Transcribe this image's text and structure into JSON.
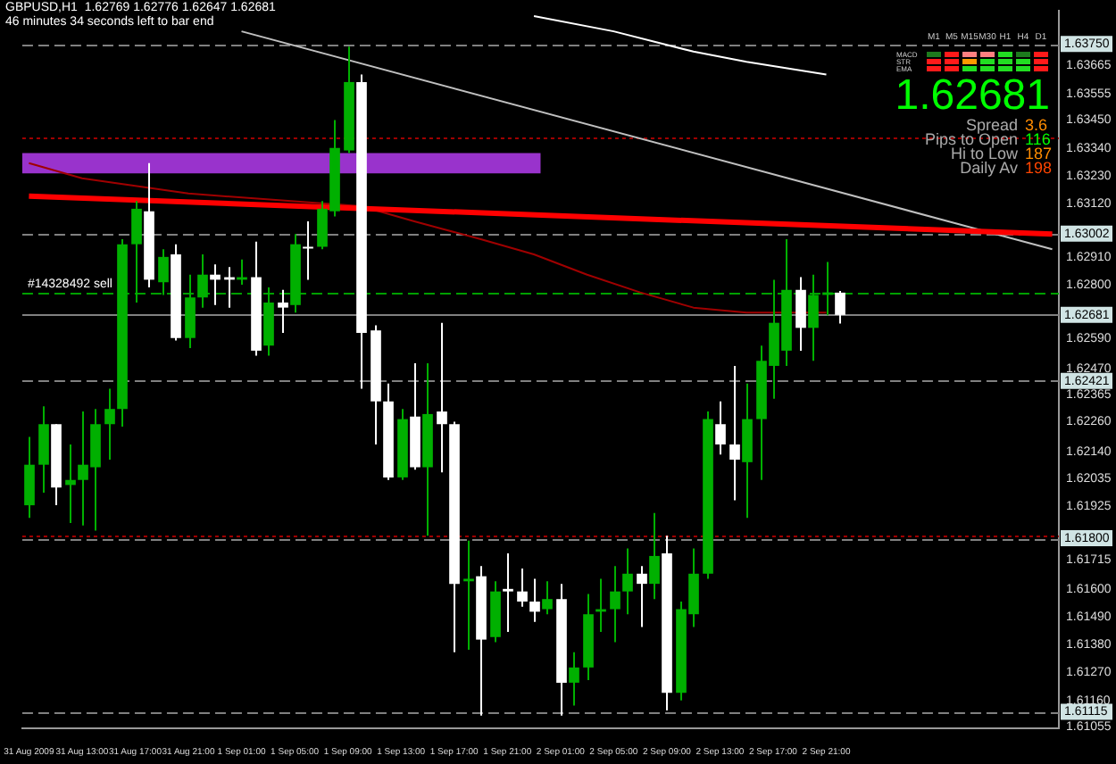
{
  "chart_data": {
    "type": "candlestick",
    "title": "GBPUSD,H1  1.62769 1.62776 1.62647 1.62681",
    "subtitle": "46 minutes 34 seconds left to bar end",
    "categories": [
      "31 Aug 2009",
      null,
      null,
      null,
      "31 Aug 13:00",
      null,
      null,
      null,
      "31 Aug 17:00",
      null,
      null,
      null,
      "31 Aug 21:00",
      null,
      null,
      null,
      "1 Sep 01:00",
      null,
      null,
      null,
      "1 Sep 05:00",
      null,
      null,
      null,
      "1 Sep 09:00",
      null,
      null,
      null,
      "1 Sep 13:00",
      null,
      null,
      null,
      "1 Sep 17:00",
      null,
      null,
      null,
      "1 Sep 21:00",
      null,
      null,
      null,
      "2 Sep 01:00",
      null,
      null,
      null,
      "2 Sep 05:00",
      null,
      null,
      null,
      "2 Sep 09:00",
      null,
      null,
      null,
      "2 Sep 13:00",
      null,
      null,
      null,
      "2 Sep 17:00",
      null,
      null,
      null,
      "2 Sep 21:00",
      null,
      null,
      null,
      null,
      null,
      null,
      null,
      null,
      null,
      null,
      null,
      null,
      null,
      null,
      null,
      null,
      null
    ],
    "ohlc": [
      [
        1.6193,
        1.622,
        1.6188,
        1.6209
      ],
      [
        1.6209,
        1.6232,
        1.6198,
        1.6225
      ],
      [
        1.6225,
        1.6225,
        1.6193,
        1.62
      ],
      [
        1.6201,
        1.6217,
        1.6186,
        1.6203
      ],
      [
        1.6203,
        1.623,
        1.6185,
        1.6209
      ],
      [
        1.6208,
        1.6231,
        1.6183,
        1.6225
      ],
      [
        1.6225,
        1.6239,
        1.6211,
        1.6231
      ],
      [
        1.6231,
        1.6298,
        1.6224,
        1.6296
      ],
      [
        1.6296,
        1.6313,
        1.6273,
        1.631
      ],
      [
        1.6309,
        1.6328,
        1.6279,
        1.6282
      ],
      [
        1.6281,
        1.6294,
        1.6276,
        1.6291
      ],
      [
        1.6292,
        1.6296,
        1.6258,
        1.6259
      ],
      [
        1.6259,
        1.6284,
        1.6255,
        1.6275
      ],
      [
        1.6275,
        1.6292,
        1.6271,
        1.6284
      ],
      [
        1.6284,
        1.6288,
        1.6272,
        1.6282
      ],
      [
        1.6283,
        1.6287,
        1.6271,
        1.6282
      ],
      [
        1.6282,
        1.629,
        1.628,
        1.6283
      ],
      [
        1.6283,
        1.6297,
        1.6252,
        1.6254
      ],
      [
        1.6256,
        1.6279,
        1.6252,
        1.6273
      ],
      [
        1.6273,
        1.6278,
        1.6261,
        1.6271
      ],
      [
        1.6272,
        1.63,
        1.6269,
        1.6296
      ],
      [
        1.6295,
        1.6305,
        1.6282,
        1.6295
      ],
      [
        1.6295,
        1.6313,
        1.6294,
        1.631
      ],
      [
        1.6309,
        1.6345,
        1.6307,
        1.6334
      ],
      [
        1.6333,
        1.6374,
        1.6332,
        1.636
      ],
      [
        1.636,
        1.6363,
        1.6239,
        1.6261
      ],
      [
        1.6262,
        1.6264,
        1.6217,
        1.6234
      ],
      [
        1.6234,
        1.6241,
        1.6203,
        1.6204
      ],
      [
        1.6204,
        1.6231,
        1.6203,
        1.6227
      ],
      [
        1.6228,
        1.6249,
        1.6207,
        1.6208
      ],
      [
        1.6208,
        1.6249,
        1.6181,
        1.6229
      ],
      [
        1.623,
        1.6265,
        1.6206,
        1.6225
      ],
      [
        1.6225,
        1.6226,
        1.6135,
        1.6162
      ],
      [
        1.6163,
        1.6179,
        1.6136,
        1.6164
      ],
      [
        1.6165,
        1.6169,
        1.611,
        1.614
      ],
      [
        1.6141,
        1.6163,
        1.6139,
        1.6159
      ],
      [
        1.616,
        1.6174,
        1.6143,
        1.6159
      ],
      [
        1.6159,
        1.6168,
        1.6153,
        1.6155
      ],
      [
        1.6155,
        1.6164,
        1.6147,
        1.6151
      ],
      [
        1.6152,
        1.6163,
        1.615,
        1.6156
      ],
      [
        1.6156,
        1.6162,
        1.611,
        1.6123
      ],
      [
        1.6123,
        1.6135,
        1.6114,
        1.6129
      ],
      [
        1.6129,
        1.6158,
        1.6124,
        1.615
      ],
      [
        1.6151,
        1.6164,
        1.6143,
        1.6152
      ],
      [
        1.6152,
        1.6169,
        1.6139,
        1.6159
      ],
      [
        1.6159,
        1.6176,
        1.615,
        1.6166
      ],
      [
        1.6166,
        1.6169,
        1.6145,
        1.6162
      ],
      [
        1.6162,
        1.619,
        1.6156,
        1.6173
      ],
      [
        1.6174,
        1.6181,
        1.6112,
        1.6119
      ],
      [
        1.6119,
        1.6155,
        1.6116,
        1.6152
      ],
      [
        1.615,
        1.6176,
        1.6145,
        1.6166
      ],
      [
        1.6166,
        1.623,
        1.6164,
        1.6227
      ],
      [
        1.6225,
        1.6234,
        1.6213,
        1.6217
      ],
      [
        1.6217,
        1.6248,
        1.6195,
        1.6211
      ],
      [
        1.621,
        1.6241,
        1.6188,
        1.6227
      ],
      [
        1.6227,
        1.6256,
        1.6203,
        1.625
      ],
      [
        1.6248,
        1.6282,
        1.6235,
        1.6265
      ],
      [
        1.6254,
        1.6298,
        1.6248,
        1.6278
      ],
      [
        1.6278,
        1.6283,
        1.6254,
        1.6263
      ],
      [
        1.6263,
        1.6284,
        1.625,
        1.6276
      ],
      [
        1.6276,
        1.6289,
        1.6268,
        1.6277
      ],
      [
        1.62769,
        1.62776,
        1.62647,
        1.62681
      ],
      null,
      null,
      null,
      null,
      null,
      null,
      null,
      null,
      null,
      null,
      null,
      null,
      null,
      null,
      null,
      null
    ],
    "colors": [
      "#00b000",
      "#00b000",
      "#ffffff",
      "#00b000",
      "#00b000",
      "#00b000",
      "#00b000",
      "#00b000",
      "#00b000",
      "#ffffff",
      "#00b000",
      "#ffffff",
      "#00b000",
      "#00b000",
      "#ffffff",
      "#ffffff",
      "#00b000",
      "#ffffff",
      "#00b000",
      "#ffffff",
      "#00b000",
      "#ffffff",
      "#00b000",
      "#00b000",
      "#00b000",
      "#ffffff",
      "#ffffff",
      "#ffffff",
      "#00b000",
      "#ffffff",
      "#00b000",
      "#ffffff",
      "#ffffff",
      "#00b000",
      "#ffffff",
      "#00b000",
      "#ffffff",
      "#ffffff",
      "#ffffff",
      "#00b000",
      "#ffffff",
      "#00b000",
      "#00b000",
      "#00b000",
      "#00b000",
      "#00b000",
      "#ffffff",
      "#00b000",
      "#ffffff",
      "#00b000",
      "#00b000",
      "#00b000",
      "#ffffff",
      "#ffffff",
      "#00b000",
      "#00b000",
      "#00b000",
      "#00b000",
      "#ffffff",
      "#00b000",
      "#00b000",
      "#ffffff",
      null,
      null,
      null,
      null,
      null,
      null,
      null,
      null,
      null,
      null,
      null,
      null,
      null,
      null,
      null,
      null
    ],
    "series": [
      {
        "type": "line",
        "color": "#ff0000",
        "values": [
          1.6315,
          null,
          null,
          null,
          null,
          null,
          null,
          null,
          null,
          null,
          null,
          null,
          null,
          null,
          null,
          null,
          null,
          null,
          null,
          null,
          null,
          null,
          null,
          null,
          null,
          null,
          null,
          null,
          null,
          null,
          null,
          null,
          null,
          null,
          null,
          null,
          null,
          null,
          null,
          null,
          null,
          null,
          null,
          null,
          null,
          null,
          null,
          null,
          null,
          null,
          null,
          null,
          null,
          null,
          null,
          null,
          null,
          null,
          null,
          null,
          null,
          null,
          null,
          null,
          null,
          null,
          null,
          null,
          null,
          null,
          null,
          null,
          null,
          null,
          null,
          null,
          null,
          1.63
        ]
      },
      {
        "type": "line",
        "color": "#c0c0c0",
        "values": [
          null,
          null,
          null,
          null,
          null,
          null,
          null,
          null,
          null,
          null,
          null,
          null,
          null,
          null,
          null,
          null,
          1.638,
          null,
          null,
          null,
          null,
          null,
          null,
          null,
          null,
          null,
          null,
          null,
          null,
          null,
          null,
          null,
          null,
          null,
          null,
          null,
          null,
          null,
          null,
          null,
          null,
          null,
          null,
          null,
          null,
          null,
          null,
          null,
          null,
          null,
          null,
          null,
          null,
          null,
          null,
          null,
          null,
          null,
          null,
          null,
          null,
          null,
          null,
          null,
          null,
          null,
          null,
          null,
          null,
          null,
          null,
          null,
          null,
          null,
          null,
          null,
          null,
          1.6294
        ]
      },
      {
        "type": "line",
        "color": "#ffffff",
        "values": [
          null,
          null,
          null,
          null,
          null,
          null,
          null,
          null,
          null,
          null,
          null,
          null,
          null,
          null,
          null,
          null,
          null,
          null,
          null,
          null,
          null,
          null,
          null,
          null,
          null,
          null,
          null,
          null,
          null,
          null,
          null,
          null,
          null,
          null,
          null,
          null,
          null,
          null,
          1.6386,
          null,
          null,
          null,
          null,
          null,
          1.638,
          null,
          null,
          null,
          null,
          null,
          1.6372,
          null,
          null,
          null,
          1.6368,
          null,
          null,
          null,
          null,
          null,
          1.6363,
          null,
          null,
          null,
          null,
          null,
          null,
          null,
          null,
          null,
          null,
          null,
          null,
          null,
          null,
          null,
          null,
          null
        ]
      },
      {
        "type": "line",
        "color": "#a00000",
        "values": [
          1.6328,
          null,
          null,
          null,
          1.6322,
          null,
          null,
          null,
          null,
          null,
          null,
          null,
          1.6316,
          null,
          null,
          null,
          null,
          null,
          null,
          null,
          null,
          null,
          null,
          null,
          null,
          1.6311,
          null,
          null,
          null,
          1.6305,
          null,
          null,
          null,
          null,
          1.6298,
          null,
          null,
          null,
          1.6292,
          null,
          null,
          null,
          1.6284,
          null,
          null,
          null,
          1.6277,
          null,
          null,
          null,
          1.6271,
          null,
          null,
          null,
          1.6269,
          null,
          null,
          null,
          null,
          null,
          1.6269,
          null,
          null,
          null,
          null,
          null,
          null,
          null,
          null,
          null,
          null,
          null,
          null,
          null,
          null,
          null,
          null,
          null
        ]
      }
    ],
    "ylim": [
      1.6105,
      1.6388
    ],
    "yticks": [
      {
        "value": 1.63665,
        "label": "1.63665"
      },
      {
        "value": 1.63555,
        "label": "1.63555"
      },
      {
        "value": 1.6345,
        "label": "1.63450"
      },
      {
        "value": 1.6334,
        "label": "1.63340"
      },
      {
        "value": 1.6323,
        "label": "1.63230"
      },
      {
        "value": 1.6312,
        "label": "1.63120"
      },
      {
        "value": 1.6291,
        "label": "1.62910"
      },
      {
        "value": 1.628,
        "label": "1.62800"
      },
      {
        "value": 1.6259,
        "label": "1.62590"
      },
      {
        "value": 1.6247,
        "label": "1.62470"
      },
      {
        "value": 1.62365,
        "label": "1.62365"
      },
      {
        "value": 1.6226,
        "label": "1.62260"
      },
      {
        "value": 1.6214,
        "label": "1.62140"
      },
      {
        "value": 1.62035,
        "label": "1.62035"
      },
      {
        "value": 1.61925,
        "label": "1.61925"
      },
      {
        "value": 1.61715,
        "label": "1.61715"
      },
      {
        "value": 1.616,
        "label": "1.61600"
      },
      {
        "value": 1.6149,
        "label": "1.61490"
      },
      {
        "value": 1.6138,
        "label": "1.61380"
      },
      {
        "value": 1.6127,
        "label": "1.61270"
      },
      {
        "value": 1.6116,
        "label": "1.61160"
      },
      {
        "value": 1.61055,
        "label": "1.61055"
      }
    ],
    "ref_lines": [
      {
        "axis": "y",
        "value": 1.6375,
        "label": "1.63750",
        "color": "#808080",
        "line_style": "dashed"
      },
      {
        "axis": "y",
        "value": 1.63002,
        "label": "1.63002",
        "color": "#808080",
        "line_style": "dashed"
      },
      {
        "axis": "y",
        "value": 1.62681,
        "label": "1.62681",
        "color": "#808080",
        "line_style": "solid"
      },
      {
        "axis": "y",
        "value": 1.62421,
        "label": "1.62421",
        "color": "#808080",
        "line_style": "dashed"
      },
      {
        "axis": "y",
        "value": 1.618,
        "label": "1.61800",
        "color": "#808080",
        "line_style": "dashed"
      },
      {
        "axis": "y",
        "value": 1.61115,
        "label": "1.61115",
        "color": "#808080",
        "line_style": "dashed"
      },
      {
        "axis": "y",
        "value": 1.6277,
        "color": "#00a000",
        "line_style": "dashed"
      },
      {
        "axis": "y",
        "value": 1.6338,
        "color": "#a00000",
        "line_style": "dotted"
      },
      {
        "axis": "y",
        "value": 1.6181,
        "color": "#a00000",
        "line_style": "dotted"
      }
    ],
    "bands": [
      {
        "axis": "y",
        "from": 1.6324,
        "to": 1.6332,
        "color": "#9933cc"
      }
    ],
    "annotations": [
      {
        "text": "#14328492 sell",
        "y": 1.6277
      },
      "1.62681",
      "Spread",
      "3.6",
      "Pips to Open",
      "116",
      "Hi to Low",
      "187",
      "Daily Av",
      "198",
      "M1",
      "M5",
      "M15",
      "M30",
      "H1",
      "H4",
      "D1",
      "MACD",
      "STR",
      "EMA"
    ],
    "grid": false,
    "legend": false
  }
}
